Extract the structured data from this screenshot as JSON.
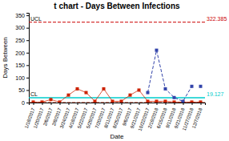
{
  "chart_data": {
    "type": "line",
    "title": "t chart - Days Between Infections",
    "x_label": "Date",
    "y_label": "Days Between",
    "categories": [
      "1/18/2017",
      "1/20/2017",
      "2/6/2017",
      "2/8/2017",
      "3/24/2017",
      "4/18/2017",
      "5/22/2017",
      "5/29/2017",
      "7/20/2017",
      "8/11/2017",
      "8/25/2017",
      "9/6/2017",
      "9/21/2017",
      "10/22/2017",
      "2/19/2018",
      "6/15/2018",
      "9/11/2018",
      "9/21/2018",
      "11/27/2018",
      "12/7/2018"
    ],
    "series": [
      {
        "color": "#cc2200",
        "marker": "square",
        "line_style": "solid",
        "values": [
          2,
          2,
          12,
          2,
          30,
          55,
          40,
          5,
          55,
          5,
          5,
          30,
          50,
          5,
          5,
          5,
          2,
          2,
          2,
          2
        ]
      },
      {
        "color": "#3344aa",
        "marker": "square",
        "line_style": "dashed",
        "values": [
          null,
          null,
          null,
          null,
          null,
          null,
          null,
          null,
          null,
          null,
          null,
          null,
          null,
          40,
          210,
          55,
          20,
          5,
          65,
          null
        ]
      },
      {
        "color": "#3344aa",
        "marker": "square",
        "line_style": "none",
        "values": [
          null,
          null,
          null,
          null,
          null,
          null,
          null,
          null,
          null,
          null,
          null,
          null,
          null,
          null,
          null,
          null,
          null,
          null,
          null,
          65
        ]
      }
    ],
    "reference_lines": [
      {
        "label": "UCL",
        "value": 322.385,
        "color": "#cc0000",
        "line_style": "dashed"
      },
      {
        "label": "CL",
        "value": 19.127,
        "color": "#00cccc",
        "line_style": "solid"
      },
      {
        "value": 0,
        "color": "#cc2200",
        "line_style": "dashed"
      }
    ],
    "ylim": [
      0,
      360
    ],
    "yticks": [
      0,
      50,
      100,
      150,
      200,
      250,
      300,
      350
    ],
    "grid": false
  }
}
